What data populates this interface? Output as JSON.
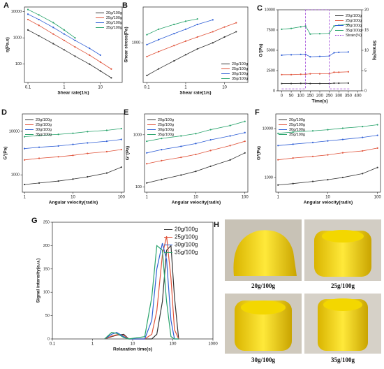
{
  "chart_data": [
    {
      "type": "line",
      "panel": "A",
      "xlabel": "Shear rate(1/s)",
      "ylabel": "η(Pa.s)",
      "xscale": "log",
      "yscale": "log",
      "xlim": [
        0.08,
        40
      ],
      "xticks": [
        0.1,
        1,
        10
      ],
      "ylim": [
        20,
        15000
      ],
      "yticks": [
        100,
        1000,
        10000
      ],
      "legend": "top-right",
      "markers": true,
      "x": [
        0.1,
        0.2,
        0.5,
        1,
        2,
        5,
        10,
        20
      ],
      "series": [
        {
          "name": "20g/100g",
          "color": "#333333",
          "values": [
            2000,
            1200,
            600,
            350,
            200,
            100,
            55,
            30
          ]
        },
        {
          "name": "25g/100g",
          "color": "#e0533a",
          "values": [
            5000,
            3000,
            1400,
            800,
            450,
            220,
            120,
            65
          ]
        },
        {
          "name": "30g/100g",
          "color": "#2f5fd6",
          "values": [
            8000,
            5000,
            2500,
            1400,
            800,
            400,
            220,
            null
          ]
        },
        {
          "name": "35g/100g",
          "color": "#27a36b",
          "values": [
            12000,
            7500,
            3800,
            2000,
            1000,
            null,
            null,
            null
          ]
        }
      ]
    },
    {
      "type": "line",
      "panel": "B",
      "xlabel": "Shear rate(1/s)",
      "ylabel": "Shear stress(Pa)",
      "xscale": "log",
      "yscale": "log",
      "xlim": [
        0.08,
        40
      ],
      "xticks": [
        0.1,
        1,
        10
      ],
      "ylim": [
        100,
        8000
      ],
      "yticks": [
        1000
      ],
      "legend": "bottom-right",
      "markers": true,
      "x": [
        0.1,
        0.2,
        0.5,
        1,
        2,
        5,
        10,
        20
      ],
      "series": [
        {
          "name": "20g/100g",
          "color": "#333333",
          "values": [
            150,
            220,
            350,
            500,
            700,
            1000,
            1400,
            1900
          ]
        },
        {
          "name": "25g/100g",
          "color": "#e0533a",
          "values": [
            450,
            600,
            850,
            1100,
            1400,
            1900,
            2500,
            3200
          ]
        },
        {
          "name": "30g/100g",
          "color": "#2f5fd6",
          "values": [
            900,
            1200,
            1700,
            2200,
            2900,
            3800,
            null,
            null
          ]
        },
        {
          "name": "35g/100g",
          "color": "#27a36b",
          "values": [
            1600,
            2200,
            2900,
            3500,
            4000,
            null,
            null,
            null
          ]
        }
      ]
    },
    {
      "type": "line",
      "panel": "C",
      "xlabel": "Time(s)",
      "ylabel": "G'(Pa)",
      "y2label": "Strain(%)",
      "xlim": [
        -20,
        420
      ],
      "xticks": [
        0,
        50,
        100,
        150,
        200,
        250,
        300,
        350,
        400
      ],
      "ylim": [
        0,
        10000
      ],
      "yticks": [
        0,
        2500,
        5000,
        7500,
        10000
      ],
      "y2lim": [
        0,
        20
      ],
      "y2ticks": [
        0,
        5,
        10,
        15,
        20
      ],
      "legend": "top-right",
      "markers": true,
      "x": [
        0,
        50,
        100,
        125,
        150,
        200,
        250,
        275,
        300,
        350
      ],
      "series": [
        {
          "name": "20g/100g",
          "color": "#333333",
          "values": [
            900,
            900,
            920,
            930,
            900,
            900,
            900,
            950,
            950,
            960
          ]
        },
        {
          "name": "25g/100g",
          "color": "#e0533a",
          "values": [
            2000,
            2000,
            2050,
            2050,
            2100,
            2100,
            2100,
            2300,
            2300,
            2350
          ]
        },
        {
          "name": "30g/100g",
          "color": "#2f5fd6",
          "values": [
            4400,
            4450,
            4500,
            4500,
            4200,
            4250,
            4300,
            4700,
            4750,
            4800
          ]
        },
        {
          "name": "35g/100g",
          "color": "#27a36b",
          "values": [
            7600,
            7700,
            7900,
            8000,
            7000,
            7050,
            7100,
            8000,
            8100,
            8200
          ]
        },
        {
          "name": "Strain(%)",
          "color": "#9b3fd6",
          "axis": "y2",
          "style": "dashed",
          "markers": false,
          "x": [
            0,
            125,
            125,
            250,
            250,
            360
          ],
          "values": [
            0.5,
            0.5,
            20,
            20,
            0.5,
            0.5
          ]
        }
      ]
    },
    {
      "type": "line",
      "panel": "D",
      "xlabel": "Angular velocity(rad/s)",
      "ylabel": "G'(Pa)",
      "xscale": "log",
      "yscale": "log",
      "xlim": [
        0.9,
        115
      ],
      "xticks": [
        1,
        10,
        100
      ],
      "ylim": [
        400,
        25000
      ],
      "yticks": [
        1000,
        10000
      ],
      "legend": "top-left",
      "markers": true,
      "x": [
        1,
        2,
        5,
        10,
        20,
        50,
        100
      ],
      "series": [
        {
          "name": "20g/100g",
          "color": "#333333",
          "values": [
            600,
            650,
            720,
            800,
            900,
            1100,
            1500
          ]
        },
        {
          "name": "25g/100g",
          "color": "#e0533a",
          "values": [
            2200,
            2400,
            2600,
            2800,
            3100,
            3400,
            3800
          ]
        },
        {
          "name": "30g/100g",
          "color": "#2f5fd6",
          "values": [
            4000,
            4300,
            4600,
            5000,
            5400,
            5900,
            6500
          ]
        },
        {
          "name": "35g/100g",
          "color": "#27a36b",
          "values": [
            7500,
            8000,
            8500,
            9000,
            9800,
            10500,
            11500
          ]
        }
      ]
    },
    {
      "type": "line",
      "panel": "E",
      "xlabel": "Angular velocity(rad/s)",
      "ylabel": "G''(Pa)",
      "xscale": "log",
      "yscale": "log",
      "xlim": [
        0.9,
        115
      ],
      "xticks": [
        1,
        10,
        100
      ],
      "ylim": [
        80,
        2500
      ],
      "yticks": [
        100,
        1000
      ],
      "legend": "top-left",
      "markers": true,
      "x": [
        1,
        2,
        5,
        10,
        20,
        50,
        100
      ],
      "series": [
        {
          "name": "20g/100g",
          "color": "#333333",
          "values": [
            120,
            140,
            170,
            200,
            250,
            330,
            450
          ]
        },
        {
          "name": "25g/100g",
          "color": "#e0533a",
          "values": [
            280,
            320,
            370,
            420,
            500,
            620,
            750
          ]
        },
        {
          "name": "30g/100g",
          "color": "#2f5fd6",
          "values": [
            450,
            520,
            600,
            680,
            800,
            950,
            1100
          ]
        },
        {
          "name": "35g/100g",
          "color": "#27a36b",
          "values": [
            750,
            850,
            950,
            1050,
            1250,
            1500,
            1800
          ]
        }
      ]
    },
    {
      "type": "line",
      "panel": "F",
      "xlabel": "Angular velocity(rad/s)",
      "ylabel": "G*(Pa)",
      "xscale": "log",
      "yscale": "log",
      "xlim": [
        0.9,
        115
      ],
      "xticks": [
        1,
        10,
        100
      ],
      "ylim": [
        500,
        20000
      ],
      "yticks": [
        1000,
        10000
      ],
      "legend": "top-left",
      "markers": true,
      "x": [
        1,
        2,
        5,
        10,
        20,
        50,
        100
      ],
      "series": [
        {
          "name": "20g/100g",
          "color": "#333333",
          "values": [
            700,
            750,
            830,
            900,
            1000,
            1200,
            1600
          ]
        },
        {
          "name": "25g/100g",
          "color": "#e0533a",
          "values": [
            2300,
            2500,
            2700,
            2900,
            3200,
            3500,
            4000
          ]
        },
        {
          "name": "30g/100g",
          "color": "#2f5fd6",
          "values": [
            4500,
            4800,
            5200,
            5600,
            6000,
            6600,
            7300
          ]
        },
        {
          "name": "35g/100g",
          "color": "#27a36b",
          "values": [
            8000,
            8500,
            9000,
            9500,
            10200,
            11000,
            12000
          ]
        }
      ]
    },
    {
      "type": "line",
      "panel": "G",
      "xlabel": "Relaxation time(s)",
      "ylabel": "Signal intensity(a.u.)",
      "xscale": "log",
      "xlim": [
        0.1,
        1000
      ],
      "xticks": [
        0.1,
        1,
        10,
        100,
        1000
      ],
      "ylim": [
        0,
        250
      ],
      "yticks": [
        0,
        50,
        100,
        150,
        200,
        250
      ],
      "legend": "top-right",
      "markers": false,
      "x": [
        2,
        3,
        4,
        6,
        8,
        20,
        30,
        40,
        55,
        70,
        90,
        110,
        140
      ],
      "series": [
        {
          "name": "20g/100g",
          "color": "#333333",
          "values": [
            0,
            5,
            8,
            10,
            0,
            0,
            0,
            10,
            80,
            190,
            200,
            90,
            0
          ]
        },
        {
          "name": "25g/100g",
          "color": "#e0533a",
          "values": [
            0,
            6,
            9,
            8,
            0,
            0,
            10,
            60,
            180,
            220,
            130,
            20,
            0
          ]
        },
        {
          "name": "30g/100g",
          "color": "#2f5fd6",
          "values": [
            0,
            10,
            14,
            5,
            0,
            0,
            40,
            150,
            205,
            170,
            40,
            0,
            0
          ]
        },
        {
          "name": "35g/100g",
          "color": "#27a36b",
          "values": [
            0,
            14,
            12,
            3,
            0,
            5,
            90,
            200,
            190,
            80,
            5,
            0,
            0
          ]
        }
      ]
    }
  ],
  "photo_panel": {
    "panel": "H",
    "labels": [
      "20g/100g",
      "25g/100g",
      "30g/100g",
      "35g/100g"
    ]
  }
}
